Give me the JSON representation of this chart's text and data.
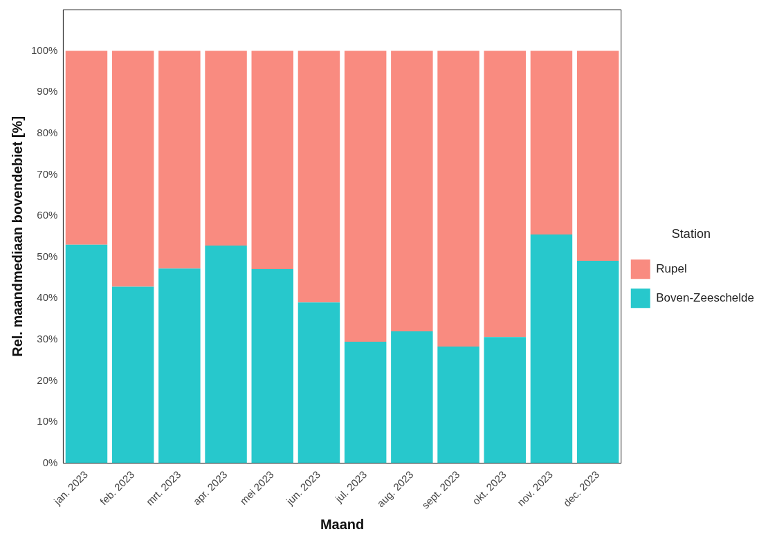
{
  "chart_data": {
    "type": "bar",
    "stacked": true,
    "xlabel": "Maand",
    "ylabel": "Rel. maandmediaan bovendebiet [%]",
    "legend_title": "Station",
    "legend": "right",
    "grid": false,
    "categories": [
      "jan. 2023",
      "feb. 2023",
      "mrt. 2023",
      "apr. 2023",
      "mei 2023",
      "jun. 2023",
      "jul. 2023",
      "aug. 2023",
      "sept. 2023",
      "okt. 2023",
      "nov. 2023",
      "dec. 2023"
    ],
    "series": [
      {
        "name": "Boven-Zeeschelde",
        "color": "#27c8cc",
        "values": [
          53.0,
          42.8,
          47.2,
          52.8,
          47.1,
          39.0,
          29.5,
          32.0,
          28.3,
          30.6,
          55.5,
          49.1
        ]
      },
      {
        "name": "Rupel",
        "color": "#f98b80",
        "values": [
          47.0,
          57.2,
          52.8,
          47.2,
          52.9,
          61.0,
          70.5,
          68.0,
          71.7,
          69.4,
          44.5,
          50.9
        ]
      }
    ],
    "ylim": [
      0,
      110
    ],
    "yticks": [
      {
        "value": 0,
        "label": "0%"
      },
      {
        "value": 10,
        "label": "10%"
      },
      {
        "value": 20,
        "label": "20%"
      },
      {
        "value": 30,
        "label": "30%"
      },
      {
        "value": 40,
        "label": "40%"
      },
      {
        "value": 50,
        "label": "50%"
      },
      {
        "value": 60,
        "label": "60%"
      },
      {
        "value": 70,
        "label": "70%"
      },
      {
        "value": 80,
        "label": "80%"
      },
      {
        "value": 90,
        "label": "90%"
      },
      {
        "value": 100,
        "label": "100%"
      }
    ]
  }
}
